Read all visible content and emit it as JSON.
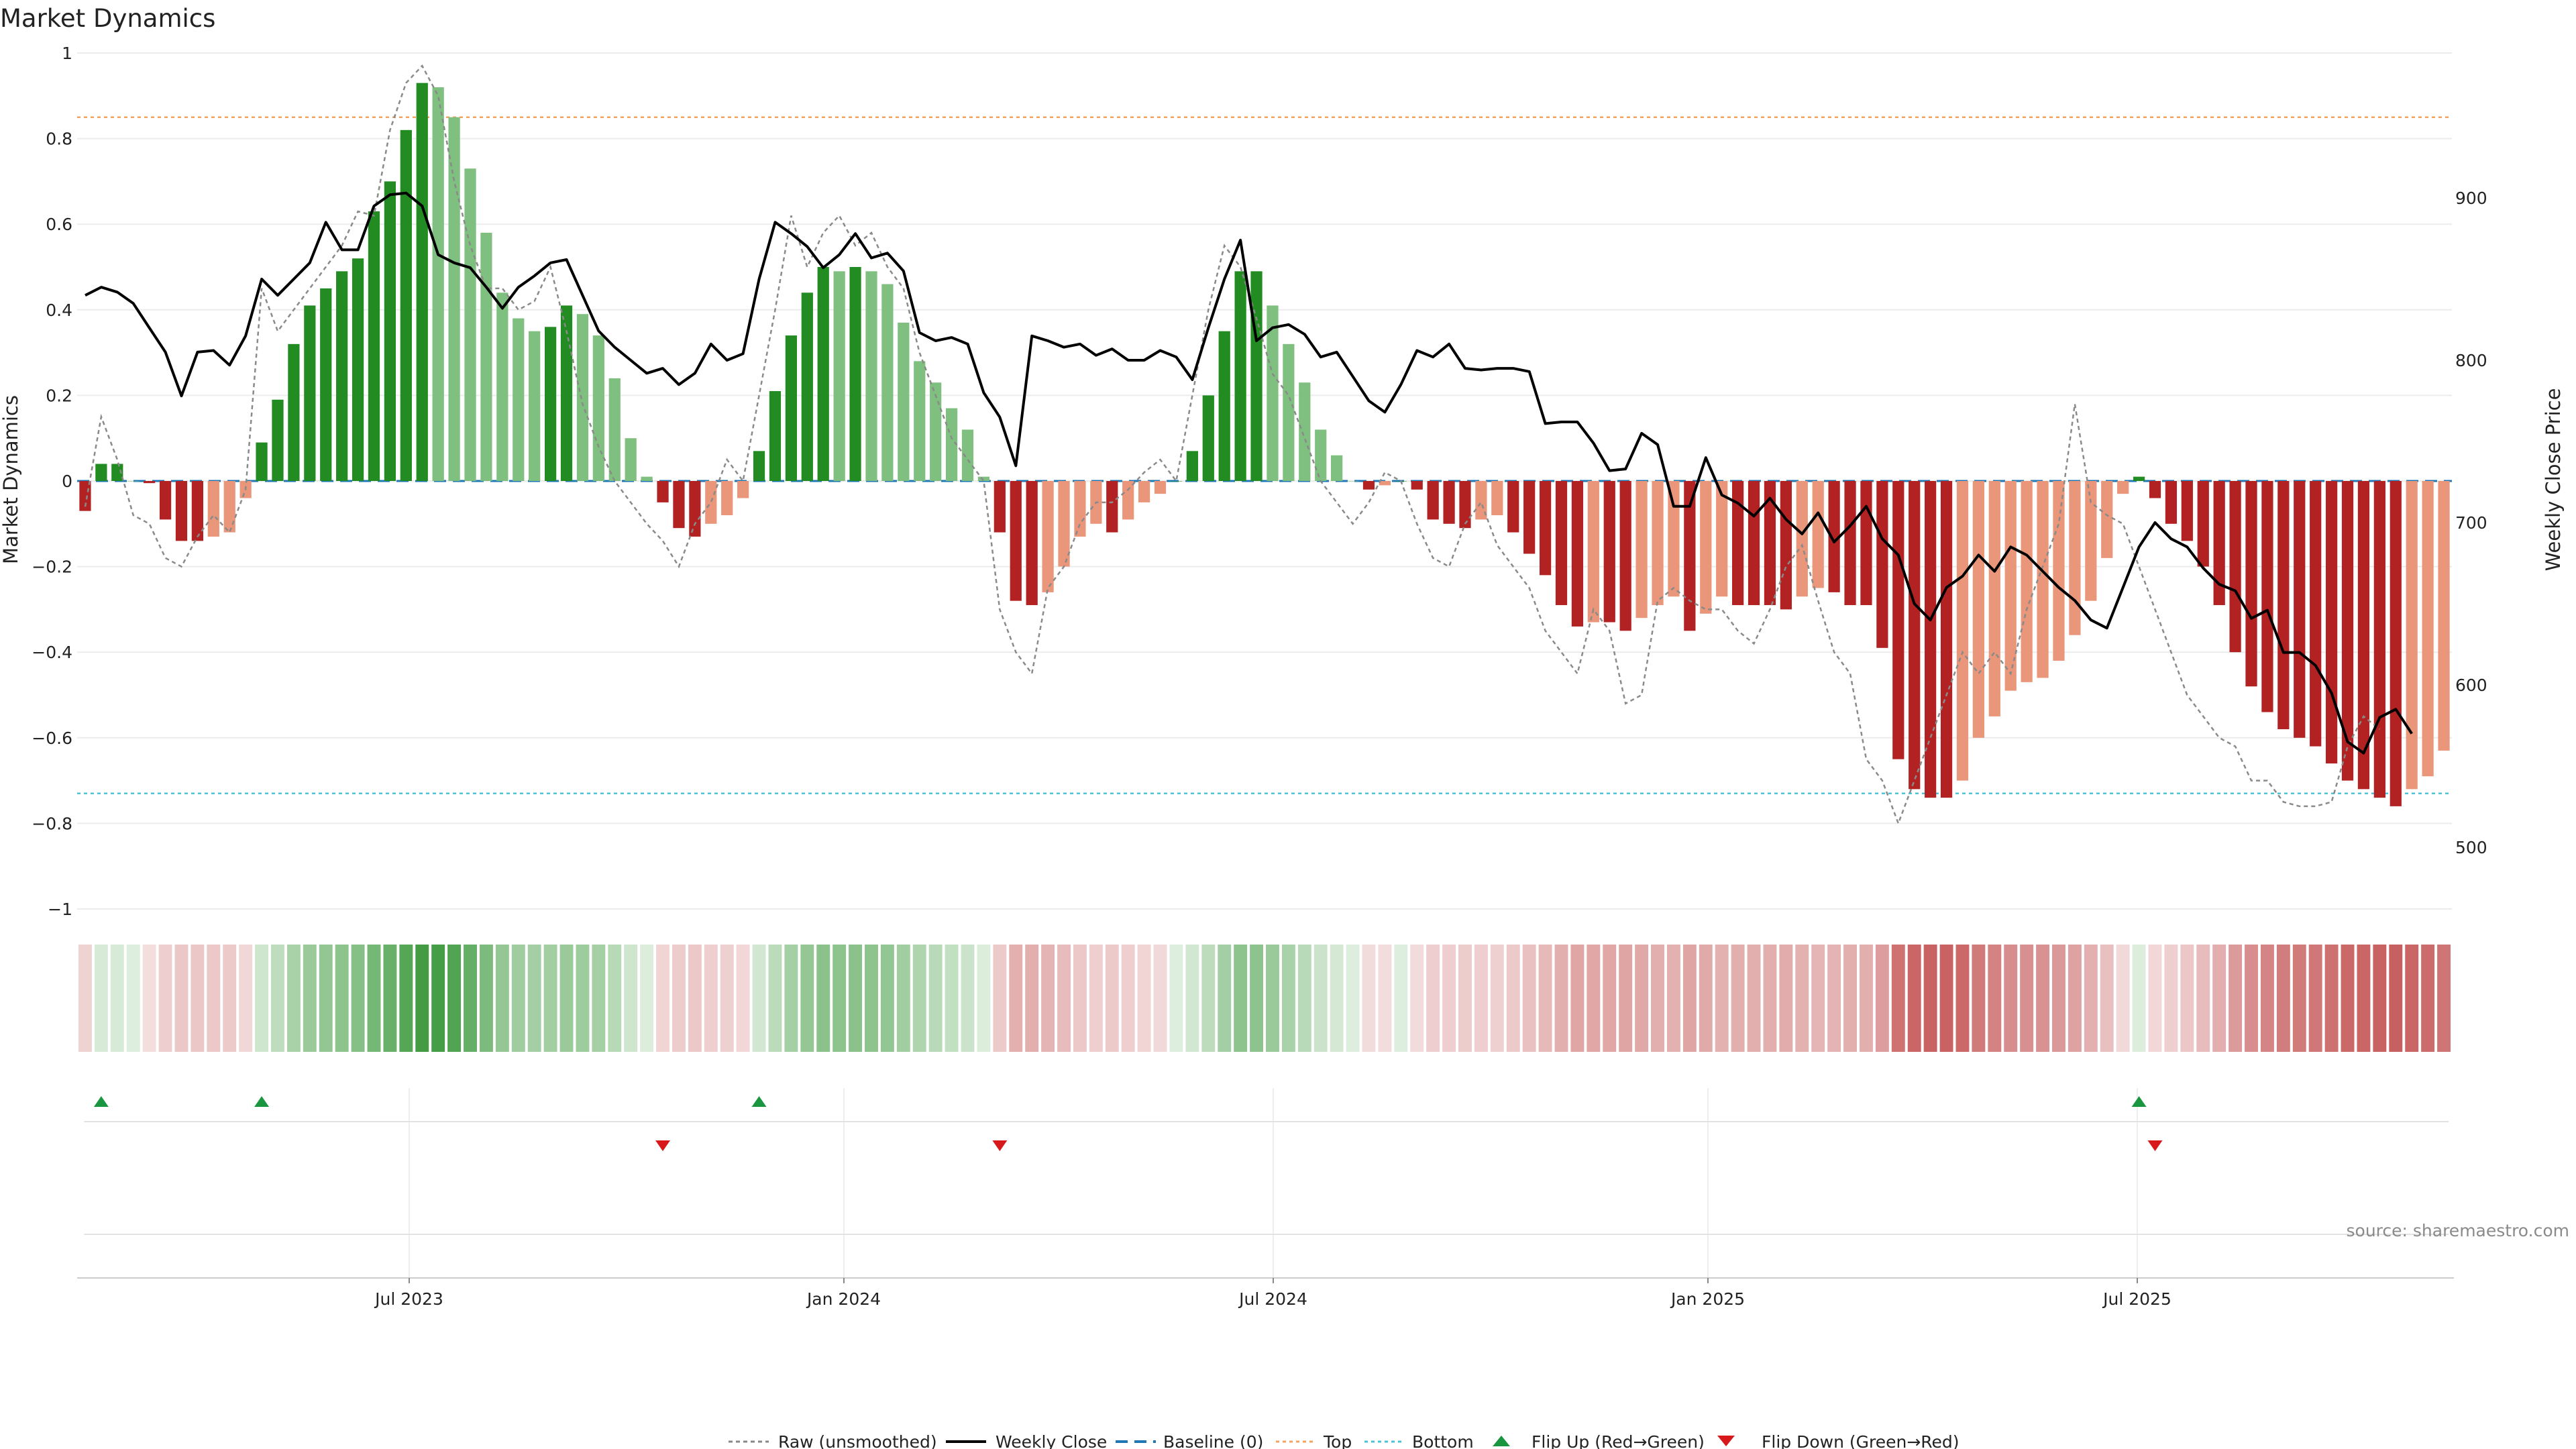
{
  "chart_data": {
    "type": "bar",
    "title": "Market Dynamics",
    "ylabel": "Market Dynamics",
    "y2label": "Weekly Close Price",
    "ylim": [
      -1,
      1
    ],
    "y2lim": [
      475,
      1000
    ],
    "yticks": [
      "1",
      "0.8",
      "0.6",
      "0.4",
      "0.2",
      "0",
      "−0.2",
      "−0.4",
      "−0.6",
      "−0.8",
      "−1"
    ],
    "y2ticks": [
      "900",
      "800",
      "700",
      "600",
      "500"
    ],
    "xticks": [
      "Jul 2023",
      "Jan 2024",
      "Jul 2024",
      "Jan 2025",
      "Jul 2025"
    ],
    "top_line": 0.85,
    "bottom_line": -0.73,
    "values": [
      -0.07,
      0.04,
      0.04,
      0.0,
      -0.005,
      -0.09,
      -0.14,
      -0.14,
      -0.13,
      -0.12,
      -0.04,
      0.09,
      0.19,
      0.32,
      0.41,
      0.45,
      0.49,
      0.52,
      0.63,
      0.7,
      0.82,
      0.93,
      0.92,
      0.85,
      0.73,
      0.58,
      0.44,
      0.38,
      0.35,
      0.36,
      0.41,
      0.39,
      0.34,
      0.24,
      0.1,
      0.01,
      -0.05,
      -0.11,
      -0.13,
      -0.1,
      -0.08,
      -0.04,
      0.07,
      0.21,
      0.34,
      0.44,
      0.5,
      0.49,
      0.5,
      0.49,
      0.46,
      0.37,
      0.28,
      0.23,
      0.17,
      0.12,
      0.01,
      -0.12,
      -0.28,
      -0.29,
      -0.26,
      -0.2,
      -0.13,
      -0.1,
      -0.12,
      -0.09,
      -0.05,
      -0.03,
      0.0,
      0.07,
      0.2,
      0.35,
      0.49,
      0.49,
      0.41,
      0.32,
      0.23,
      0.12,
      0.06,
      0.0,
      -0.02,
      -0.01,
      0.0,
      -0.02,
      -0.09,
      -0.1,
      -0.11,
      -0.09,
      -0.08,
      -0.12,
      -0.17,
      -0.22,
      -0.29,
      -0.34,
      -0.33,
      -0.33,
      -0.35,
      -0.32,
      -0.29,
      -0.27,
      -0.35,
      -0.31,
      -0.27,
      -0.29,
      -0.29,
      -0.29,
      -0.3,
      -0.27,
      -0.25,
      -0.26,
      -0.29,
      -0.29,
      -0.39,
      -0.65,
      -0.72,
      -0.74,
      -0.74,
      -0.7,
      -0.6,
      -0.55,
      -0.49,
      -0.47,
      -0.46,
      -0.42,
      -0.36,
      -0.28,
      -0.18,
      -0.03,
      0.01,
      -0.04,
      -0.1,
      -0.14,
      -0.2,
      -0.29,
      -0.4,
      -0.48,
      -0.54,
      -0.58,
      -0.6,
      -0.62,
      -0.66,
      -0.7,
      -0.72,
      -0.74,
      -0.76,
      -0.72,
      -0.69,
      -0.63
    ],
    "raw_values": [
      -0.06,
      0.15,
      0.05,
      -0.08,
      -0.1,
      -0.18,
      -0.2,
      -0.13,
      -0.08,
      -0.12,
      -0.02,
      0.45,
      0.35,
      0.4,
      0.45,
      0.5,
      0.55,
      0.63,
      0.62,
      0.82,
      0.93,
      0.97,
      0.9,
      0.7,
      0.55,
      0.45,
      0.45,
      0.4,
      0.42,
      0.5,
      0.35,
      0.18,
      0.08,
      0.0,
      -0.05,
      -0.1,
      -0.14,
      -0.2,
      -0.1,
      -0.05,
      0.05,
      0.0,
      0.2,
      0.4,
      0.62,
      0.5,
      0.58,
      0.62,
      0.55,
      0.58,
      0.5,
      0.45,
      0.3,
      0.2,
      0.1,
      0.05,
      0.0,
      -0.3,
      -0.4,
      -0.45,
      -0.25,
      -0.2,
      -0.1,
      -0.05,
      -0.05,
      -0.02,
      0.02,
      0.05,
      0.0,
      0.2,
      0.4,
      0.55,
      0.5,
      0.38,
      0.25,
      0.2,
      0.1,
      0.0,
      -0.05,
      -0.1,
      -0.05,
      0.02,
      0.0,
      -0.1,
      -0.18,
      -0.2,
      -0.1,
      -0.05,
      -0.15,
      -0.2,
      -0.25,
      -0.35,
      -0.4,
      -0.45,
      -0.3,
      -0.35,
      -0.52,
      -0.5,
      -0.28,
      -0.25,
      -0.28,
      -0.3,
      -0.3,
      -0.35,
      -0.38,
      -0.3,
      -0.2,
      -0.15,
      -0.28,
      -0.4,
      -0.45,
      -0.65,
      -0.7,
      -0.8,
      -0.7,
      -0.6,
      -0.5,
      -0.4,
      -0.45,
      -0.4,
      -0.45,
      -0.3,
      -0.2,
      -0.1,
      0.18,
      -0.05,
      -0.08,
      -0.1,
      -0.2,
      -0.3,
      -0.4,
      -0.5,
      -0.55,
      -0.6,
      -0.62,
      -0.7,
      -0.7,
      -0.75,
      -0.76,
      -0.76,
      -0.75,
      -0.62,
      -0.55,
      -0.58
    ],
    "weekly_close": [
      840,
      845,
      842,
      835,
      820,
      805,
      778,
      805,
      806,
      797,
      815,
      850,
      840,
      850,
      860,
      885,
      868,
      868,
      895,
      902,
      903,
      895,
      865,
      860,
      857,
      845,
      832,
      845,
      852,
      860,
      862,
      840,
      818,
      808,
      800,
      792,
      795,
      785,
      792,
      810,
      800,
      804,
      850,
      885,
      878,
      870,
      857,
      865,
      878,
      863,
      866,
      855,
      817,
      812,
      814,
      810,
      780,
      765,
      735,
      815,
      812,
      808,
      810,
      803,
      807,
      800,
      800,
      806,
      802,
      788,
      820,
      850,
      874,
      812,
      820,
      822,
      816,
      802,
      805,
      790,
      775,
      768,
      785,
      806,
      802,
      810,
      795,
      794,
      795,
      795,
      793,
      761,
      762,
      762,
      749,
      732,
      733,
      755,
      748,
      710,
      710,
      740,
      717,
      712,
      704,
      715,
      702,
      693,
      706,
      688,
      698,
      710,
      690,
      680,
      650,
      640,
      660,
      667,
      680,
      670,
      685,
      680,
      670,
      660,
      652,
      640,
      635,
      660,
      685,
      700,
      690,
      685,
      672,
      662,
      658,
      641,
      646,
      620,
      620,
      612,
      595,
      565,
      558,
      580,
      585,
      570
    ]
  },
  "flip_up_label": "Flip Up (Red→Green)",
  "flip_down_label": "Flip Down (Green→Red)",
  "legend": {
    "raw": "Raw (unsmoothed)",
    "weekly": "Weekly Close",
    "baseline": "Baseline (0)",
    "top": "Top",
    "bottom": "Bottom",
    "flip_up": "Flip Up (Red→Green)",
    "flip_down": "Flip Down (Green→Red)"
  },
  "source": "source: sharemaestro.com",
  "colors": {
    "strong_green": "#228b22",
    "light_green": "#7fbf7f",
    "strong_red": "#b22222",
    "light_red": "#e9967a",
    "top": "#f4a460",
    "bottom": "#4dc3d8",
    "baseline": "#1f77b4"
  }
}
